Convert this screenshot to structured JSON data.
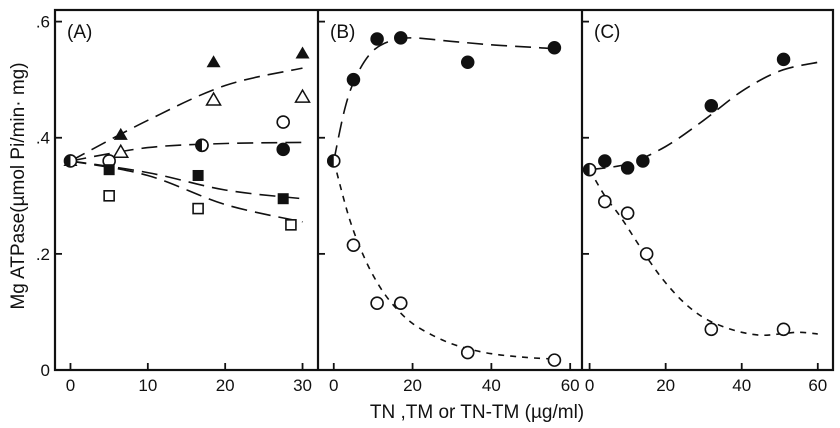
{
  "chart_data": [
    {
      "panel": "(A)",
      "type": "line",
      "xlim": [
        -2,
        32
      ],
      "ylim": [
        0,
        0.62
      ],
      "x_ticks": [
        "0",
        "10",
        "20",
        "30"
      ],
      "x_tick_values": [
        0,
        10,
        20,
        30
      ],
      "y_ticks": [
        "0",
        ".2",
        ".4",
        ".6"
      ],
      "y_tick_values": [
        0,
        0.2,
        0.4,
        0.6
      ],
      "series": [
        {
          "marker": "triangle-filled",
          "line": "long-dash",
          "x": [
            0,
            6.5,
            18.5,
            30
          ],
          "y": [
            0.36,
            0.405,
            0.53,
            0.545
          ],
          "curve_x": [
            0,
            10,
            20,
            30
          ],
          "curve_y": [
            0.36,
            0.43,
            0.49,
            0.52
          ]
        },
        {
          "marker": "triangle-open",
          "line": "none",
          "x": [
            6.5,
            18.5,
            30
          ],
          "y": [
            0.375,
            0.465,
            0.47
          ]
        },
        {
          "marker": "circle-open",
          "line": "long-dash",
          "x": [
            5,
            17,
            27.5
          ],
          "y": [
            0.36,
            0.387,
            0.427
          ],
          "curve_x": [
            0,
            10,
            20,
            30
          ],
          "curve_y": [
            0.36,
            0.383,
            0.39,
            0.392
          ]
        },
        {
          "marker": "circle-filled",
          "line": "none",
          "x": [
            27.5
          ],
          "y": [
            0.38
          ]
        },
        {
          "marker": "square-filled",
          "line": "long-dash",
          "x": [
            5,
            16.5,
            27.5
          ],
          "y": [
            0.345,
            0.335,
            0.295
          ],
          "curve_x": [
            0,
            10,
            20,
            30
          ],
          "curve_y": [
            0.36,
            0.34,
            0.31,
            0.295
          ]
        },
        {
          "marker": "square-open",
          "line": "long-dash",
          "x": [
            5,
            16.5,
            28.5
          ],
          "y": [
            0.3,
            0.278,
            0.25
          ],
          "curve_x": [
            0,
            10,
            20,
            30
          ],
          "curve_y": [
            0.36,
            0.335,
            0.285,
            0.255
          ]
        },
        {
          "marker": "circle-half",
          "line": "none",
          "x": [
            0,
            17
          ],
          "y": [
            0.36,
            0.387
          ]
        }
      ]
    },
    {
      "panel": "(B)",
      "type": "line",
      "xlim": [
        -4,
        63
      ],
      "ylim": [
        0,
        0.62
      ],
      "x_ticks": [
        "0",
        "20",
        "40",
        "60"
      ],
      "x_tick_values": [
        0,
        20,
        40,
        60
      ],
      "series": [
        {
          "marker": "circle-filled",
          "line": "long-dash",
          "x": [
            5,
            11,
            17,
            34,
            56
          ],
          "y": [
            0.5,
            0.57,
            0.572,
            0.53,
            0.555
          ],
          "curve_x": [
            0,
            3,
            6,
            10,
            15,
            20,
            30,
            40,
            50,
            56
          ],
          "curve_y": [
            0.36,
            0.455,
            0.51,
            0.55,
            0.568,
            0.572,
            0.566,
            0.56,
            0.556,
            0.553
          ]
        },
        {
          "marker": "circle-open",
          "line": "short-dash",
          "x": [
            5,
            11,
            17,
            34,
            56
          ],
          "y": [
            0.215,
            0.115,
            0.115,
            0.03,
            0.017
          ],
          "curve_x": [
            0,
            4,
            8,
            12,
            16,
            20,
            25,
            30,
            35,
            40,
            45,
            50,
            56
          ],
          "curve_y": [
            0.36,
            0.26,
            0.19,
            0.14,
            0.105,
            0.08,
            0.06,
            0.045,
            0.035,
            0.028,
            0.024,
            0.021,
            0.019
          ]
        },
        {
          "marker": "circle-half",
          "line": "none",
          "x": [
            0
          ],
          "y": [
            0.36
          ]
        }
      ]
    },
    {
      "panel": "(C)",
      "type": "line",
      "xlim": [
        -2,
        64
      ],
      "ylim": [
        0,
        0.62
      ],
      "x_ticks": [
        "0",
        "20",
        "40",
        "60"
      ],
      "x_tick_values": [
        0,
        20,
        40,
        60
      ],
      "series": [
        {
          "marker": "circle-filled",
          "line": "long-dash",
          "x": [
            4,
            10,
            14,
            32,
            51
          ],
          "y": [
            0.36,
            0.348,
            0.36,
            0.455,
            0.535
          ],
          "curve_x": [
            0,
            10,
            20,
            30,
            40,
            50,
            60
          ],
          "curve_y": [
            0.345,
            0.355,
            0.385,
            0.43,
            0.48,
            0.515,
            0.53
          ]
        },
        {
          "marker": "circle-open",
          "line": "short-dash",
          "x": [
            4,
            10,
            15,
            32,
            51
          ],
          "y": [
            0.29,
            0.27,
            0.2,
            0.07,
            0.07
          ],
          "curve_x": [
            0,
            4,
            8,
            12,
            16,
            20,
            25,
            30,
            35,
            40,
            45,
            50,
            55,
            60
          ],
          "curve_y": [
            0.345,
            0.3,
            0.265,
            0.225,
            0.185,
            0.15,
            0.115,
            0.09,
            0.075,
            0.065,
            0.06,
            0.062,
            0.065,
            0.062
          ]
        },
        {
          "marker": "circle-half",
          "line": "none",
          "x": [
            0
          ],
          "y": [
            0.345
          ]
        }
      ]
    }
  ],
  "y_axis_label": "Mg ATPase(µmol Pi/min· mg)",
  "x_axis_label": "TN ,TM  or  TN-TM (µg/ml)"
}
